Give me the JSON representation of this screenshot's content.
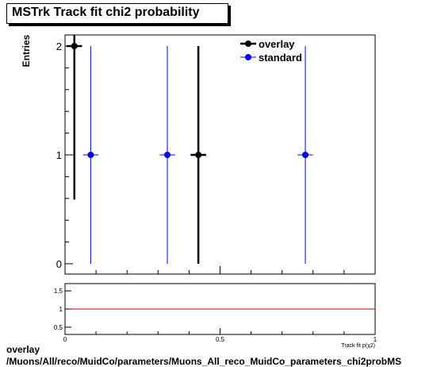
{
  "chart_data": {
    "type": "scatter",
    "title": "MSTrk Track fit chi2 probability",
    "ylabel": "Entries",
    "xlabel": "Track fit p(χ2)",
    "xlim": [
      0,
      1
    ],
    "ylim": [
      0,
      2.1
    ],
    "yticks": [
      0,
      1,
      2
    ],
    "xticks": [
      0,
      0.5,
      1
    ],
    "series": [
      {
        "name": "overlay",
        "color": "#000000",
        "points": [
          {
            "x": 0.03,
            "y": 2,
            "err": 1.41,
            "xerr": 0.025
          },
          {
            "x": 0.43,
            "y": 1,
            "err": 1.0,
            "xerr": 0.025
          }
        ]
      },
      {
        "name": "standard",
        "color": "#0000ff",
        "points": [
          {
            "x": 0.083,
            "y": 1,
            "err": 1.0,
            "xerr": 0.025
          },
          {
            "x": 0.33,
            "y": 1,
            "err": 1.0,
            "xerr": 0.025
          },
          {
            "x": 0.775,
            "y": 1,
            "err": 1.0,
            "xerr": 0.025
          }
        ]
      }
    ],
    "ratio": {
      "yticks": [
        0.5,
        1,
        1.5
      ],
      "ylim": [
        0.3,
        1.7
      ],
      "line_y": 1,
      "line_color": "#cc0000"
    },
    "legend": "top-right"
  },
  "footer": {
    "line1": "overlay",
    "line2": "/Muons/All/reco/MuidCo/parameters/Muons_All_reco_MuidCo_parameters_chi2probMS"
  }
}
